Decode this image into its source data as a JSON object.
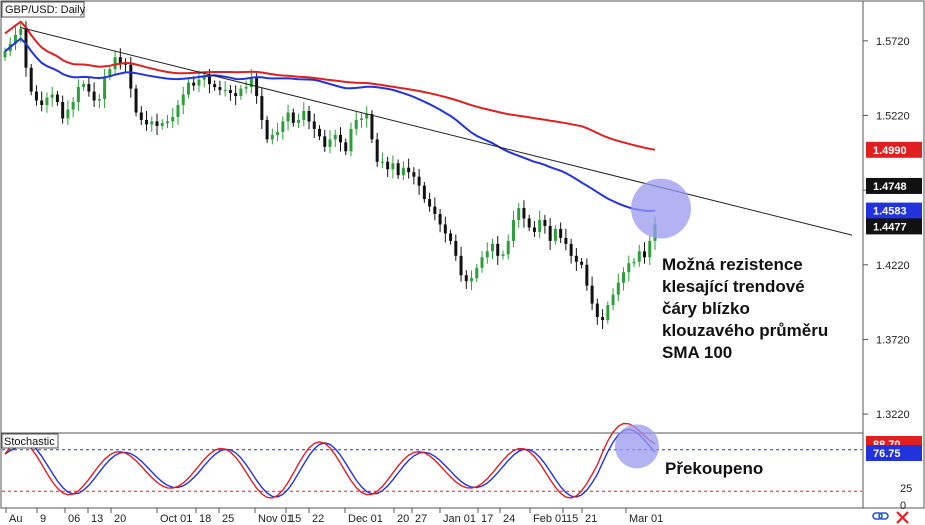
{
  "chart_data": [
    {
      "type": "candlestick",
      "title": "GBP/USD: Daily",
      "y_ticks": [
        1.572,
        1.522,
        1.472,
        1.422,
        1.372,
        1.322
      ],
      "y_tick_labels": [
        "1.5720",
        "1.5220",
        "1.4720",
        "1.4220",
        "1.3720",
        "1.3220"
      ],
      "ylim": [
        1.31,
        1.598
      ],
      "x_tick_labels": [
        "Au",
        "9",
        "06",
        "13",
        "20",
        "Oct 01",
        "18",
        "25",
        "Nov 01",
        "15",
        "22",
        "Dec 01",
        "20",
        "27",
        "Jan 01",
        "17",
        "24",
        "Feb 01",
        "15",
        "21",
        "Mar 01"
      ],
      "series": [
        {
          "kind": "price",
          "close_series": [
            1.565,
            1.57,
            1.576,
            1.58,
            1.554,
            1.538,
            1.532,
            1.529,
            1.534,
            1.536,
            1.531,
            1.52,
            1.526,
            1.531,
            1.541,
            1.543,
            1.538,
            1.532,
            1.533,
            1.548,
            1.553,
            1.561,
            1.557,
            1.556,
            1.54,
            1.524,
            1.519,
            1.516,
            1.518,
            1.515,
            1.517,
            1.518,
            1.521,
            1.529,
            1.536,
            1.544,
            1.542,
            1.546,
            1.548,
            1.543,
            1.541,
            1.539,
            1.539,
            1.537,
            1.535,
            1.54,
            1.541,
            1.547,
            1.535,
            1.519,
            1.506,
            1.509,
            1.511,
            1.518,
            1.524,
            1.517,
            1.519,
            1.525,
            1.518,
            1.513,
            1.508,
            1.501,
            1.506,
            1.509,
            1.504,
            1.498,
            1.513,
            1.519,
            1.52,
            1.523,
            1.506,
            1.491,
            1.491,
            1.486,
            1.49,
            1.482,
            1.487,
            1.484,
            1.481,
            1.475,
            1.466,
            1.461,
            1.456,
            1.449,
            1.443,
            1.438,
            1.428,
            1.415,
            1.411,
            1.413,
            1.42,
            1.427,
            1.431,
            1.436,
            1.428,
            1.429,
            1.438,
            1.452,
            1.46,
            1.453,
            1.447,
            1.444,
            1.452,
            1.448,
            1.438,
            1.446,
            1.44,
            1.436,
            1.428,
            1.424,
            1.422,
            1.408,
            1.396,
            1.387,
            1.385,
            1.395,
            1.402,
            1.41,
            1.417,
            1.423,
            1.424,
            1.431,
            1.427,
            1.438,
            1.449
          ],
          "sma_100_last": 1.4583,
          "sma_200_last": 1.499,
          "trendline_at_last": 1.4748,
          "last_price": 1.4477
        },
        {
          "kind": "stochastic",
          "title": "Stochastic",
          "k_last": 88.7,
          "d_last": 76.75,
          "levels": [
            80,
            20
          ],
          "y_tick_labels": [
            "25",
            "0"
          ],
          "ylim": [
            0,
            100
          ]
        }
      ],
      "badges": {
        "sma_200": {
          "value": "1.4990",
          "color": "#e02020"
        },
        "trendline": {
          "value": "1.4748",
          "color": "#111111"
        },
        "sma_100": {
          "value": "1.4583",
          "color": "#2233dd"
        },
        "last_price": {
          "value": "1.4477",
          "color": "#111111"
        },
        "stoch_k": {
          "value": "88.70",
          "color": "#e02020"
        },
        "stoch_d": {
          "value": "76.75",
          "color": "#2233dd"
        }
      }
    }
  ],
  "annotations": {
    "main": "Možná rezistence klesající trendové čáry blízko klouzavého průměru SMA 100",
    "main_lines": [
      "Možná rezistence",
      "klesající trendové",
      "čáry blízko",
      "klouzavého průměru",
      "SMA 100"
    ],
    "stoch": "Překoupeno"
  },
  "colors": {
    "bull": "#2e9e3a",
    "bear": "#111111",
    "sma100": "#2233dd",
    "sma200": "#e02020",
    "highlight": "#9a9af0",
    "stoch_k": "#e02020",
    "stoch_d": "#2233dd"
  },
  "icons": [
    "link-icon",
    "flag-icon"
  ]
}
